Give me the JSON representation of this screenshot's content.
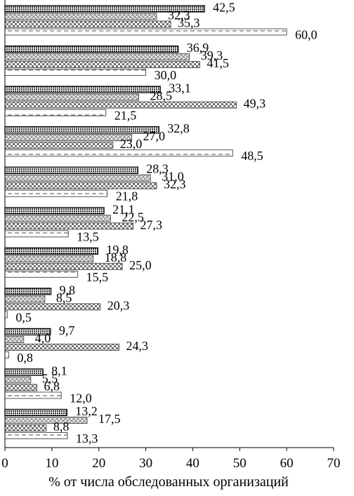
{
  "chart_data": {
    "type": "bar",
    "orientation": "horizontal",
    "xlabel": "% от числа обследованных организаций",
    "xlim": [
      0,
      70
    ],
    "x_ticks": [
      "0",
      "10",
      "20",
      "30",
      "40",
      "50",
      "60",
      "70"
    ],
    "grid": false,
    "legend": "none",
    "series": [
      {
        "values": [
          "42,5",
          "36,9",
          "33,1",
          "32,8",
          "28,3",
          "21,1",
          "19,8",
          "9,8",
          "9,7",
          "8,1",
          "13,2"
        ]
      },
      {
        "values": [
          "32,3",
          "39,3",
          "28,5",
          "27,0",
          "31,0",
          "22,5",
          "18,8",
          "8,5",
          "4,0",
          "5,5",
          "17,5"
        ]
      },
      {
        "values": [
          "35,3",
          "41,5",
          "49,3",
          "23,0",
          "32,3",
          "27,3",
          "25,0",
          "20,3",
          "24,3",
          "6,8",
          "8,8"
        ]
      },
      {
        "values": [
          "60,0",
          "30,0",
          "21,5",
          "48,5",
          "21,8",
          "13,5",
          "15,5",
          "0,5",
          "0,8",
          "12,0",
          "13,3"
        ]
      }
    ],
    "series_styles": [
      {
        "fill": "#6a6a6a",
        "pattern": "dense-dots",
        "edge": "#000000"
      },
      {
        "fill": "#c8c8c8",
        "pattern": "light-cross",
        "edge": "#555555"
      },
      {
        "fill": "#8c8c8c",
        "pattern": "checker",
        "edge": "#555555"
      },
      {
        "fill": "#ffffff",
        "pattern": "dashes",
        "edge": "#555555"
      }
    ]
  }
}
